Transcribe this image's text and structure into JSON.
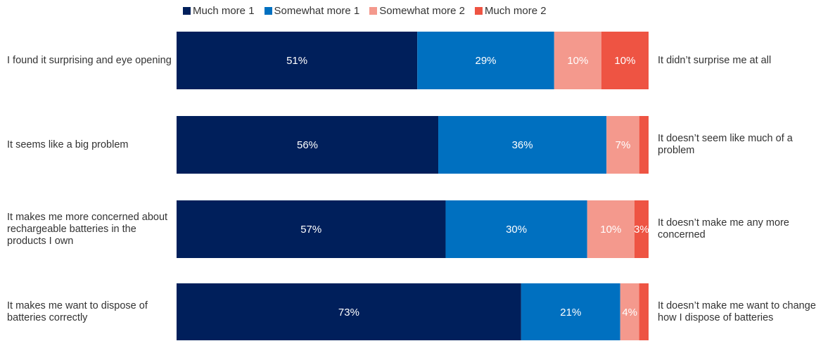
{
  "chart_data": {
    "type": "bar",
    "orientation": "horizontal",
    "stacked": true,
    "legend_position": "top",
    "grid": false,
    "xlim": [
      0,
      100
    ],
    "legend": [
      "Much more 1",
      "Somewhat more 1",
      "Somewhat more 2",
      "Much more 2"
    ],
    "colors": [
      "#001f5b",
      "#0070c0",
      "#f4998d",
      "#ee5443"
    ],
    "rows": [
      {
        "left_label": "I found it surprising and eye opening",
        "right_label": "It didn’t surprise me at all",
        "values": [
          51,
          29,
          10,
          10
        ],
        "labels": [
          "51%",
          "29%",
          "10%",
          "10%"
        ]
      },
      {
        "left_label": "It seems like a big problem",
        "right_label": "It doesn’t seem like much of a problem",
        "values": [
          56,
          36,
          7,
          2
        ],
        "labels": [
          "56%",
          "36%",
          "7%",
          ""
        ]
      },
      {
        "left_label": "It makes me more concerned about rechargeable batteries in the products I own",
        "right_label": "It doesn’t make me any more concerned",
        "values": [
          57,
          30,
          10,
          3
        ],
        "labels": [
          "57%",
          "30%",
          "10%",
          "3%"
        ]
      },
      {
        "left_label": "It makes me want to dispose of batteries correctly",
        "right_label": "It doesn’t make me want to change how I dispose of batteries",
        "values": [
          73,
          21,
          4,
          2
        ],
        "labels": [
          "73%",
          "21%",
          "4%",
          ""
        ]
      }
    ]
  }
}
